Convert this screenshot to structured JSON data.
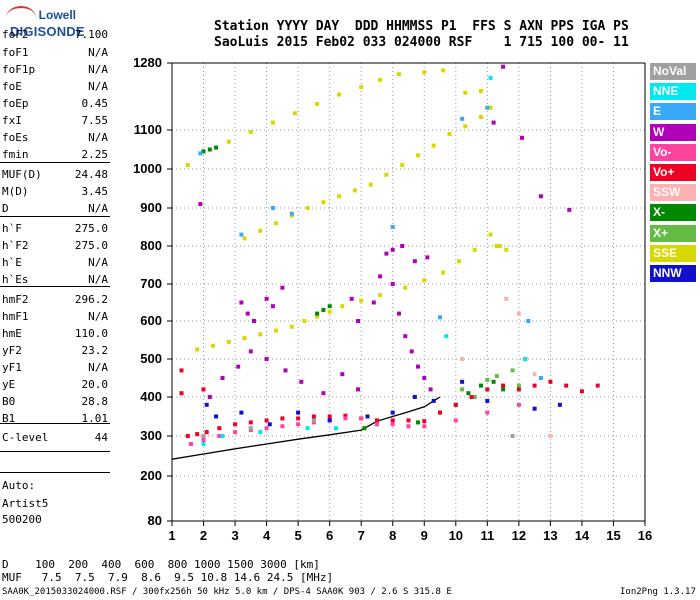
{
  "logo": {
    "line1": "Lowell",
    "line2": "DIGISONDE"
  },
  "header": {
    "line1": "Station YYYY DAY  DDD HHMMSS P1  FFS S AXN PPS IGA PS",
    "line2": "SaoLuis 2015 Feb02 033 024000 RSF    1 715 100 00- 11"
  },
  "params": [
    {
      "name": "foF2",
      "value": "7.100"
    },
    {
      "name": "foF1",
      "value": "N/A"
    },
    {
      "name": "foF1p",
      "value": "N/A"
    },
    {
      "name": "foE",
      "value": "N/A"
    },
    {
      "name": "foEp",
      "value": "0.45"
    },
    {
      "name": "fxI",
      "value": "7.55"
    },
    {
      "name": "foEs",
      "value": "N/A"
    },
    {
      "name": "fmin",
      "value": "2.25"
    },
    {
      "name": "MUF(D)",
      "value": "24.48"
    },
    {
      "name": "M(D)",
      "value": "3.45"
    },
    {
      "name": "D",
      "value": "N/A"
    },
    {
      "name": "h`F",
      "value": "275.0"
    },
    {
      "name": "h`F2",
      "value": "275.0"
    },
    {
      "name": "h`E",
      "value": "N/A"
    },
    {
      "name": "h`Es",
      "value": "N/A"
    },
    {
      "name": "hmF2",
      "value": "296.2"
    },
    {
      "name": "hmF1",
      "value": "N/A"
    },
    {
      "name": "hmE",
      "value": "110.0"
    },
    {
      "name": "yF2",
      "value": "23.2"
    },
    {
      "name": "yF1",
      "value": "N/A"
    },
    {
      "name": "yE",
      "value": "20.0"
    },
    {
      "name": "B0",
      "value": "28.8"
    },
    {
      "name": "B1",
      "value": "1.01"
    },
    {
      "name": "C-level",
      "value": "44"
    }
  ],
  "autoscaling": {
    "line1": "Auto:",
    "line2": "Artist5",
    "line3": "500200"
  },
  "bottom_table": {
    "d_row": "D    100  200  400  600  800 1000 1500 3000 [km]",
    "muf_row": "MUF   7.5  7.5  7.9  8.6  9.5 10.8 14.6 24.5 [MHz]"
  },
  "footer": {
    "left": "SAA0K_2015033024000.RSF / 300fx256h 50 kHz 5.0 km / DPS-4 SAA0K 903 / 2.6 S 315.8 E",
    "right": "Ion2Png 1.3.17"
  },
  "legend": [
    {
      "label": "NoVal",
      "color": "#a0a0a0"
    },
    {
      "label": "NNE",
      "color": "#00e8f0"
    },
    {
      "label": "E",
      "color": "#38a8f8"
    },
    {
      "label": "W",
      "color": "#b000b8"
    },
    {
      "label": "Vo-",
      "color": "#ff44a0"
    },
    {
      "label": "Vo+",
      "color": "#ee0022"
    },
    {
      "label": "SSW",
      "color": "#ffb0b0"
    },
    {
      "label": "X-",
      "color": "#008800"
    },
    {
      "label": "X+",
      "color": "#66bb44"
    },
    {
      "label": "SSE",
      "color": "#d8d800"
    },
    {
      "label": "NNW",
      "color": "#1010cc"
    }
  ],
  "chart_data": {
    "type": "scatter",
    "xlabel": "",
    "ylabel": "",
    "x_ticks": [
      1,
      2,
      3,
      4,
      5,
      6,
      7,
      8,
      9,
      10,
      11,
      12,
      13,
      14,
      15,
      16
    ],
    "y_ticks": [
      80,
      200,
      300,
      400,
      500,
      600,
      700,
      800,
      900,
      1000,
      1100,
      1280
    ],
    "xlim": [
      1,
      16
    ],
    "ylim": [
      80,
      1280
    ],
    "grid": true,
    "legend_position": "right",
    "series": [
      {
        "name": "SSE",
        "color": "#d8d800",
        "points": [
          [
            1.8,
            525
          ],
          [
            2.3,
            535
          ],
          [
            2.8,
            545
          ],
          [
            3.3,
            555
          ],
          [
            3.8,
            565
          ],
          [
            4.3,
            575
          ],
          [
            4.8,
            585
          ],
          [
            5.2,
            600
          ],
          [
            5.6,
            612
          ],
          [
            6.0,
            625
          ],
          [
            6.4,
            640
          ],
          [
            7.0,
            655
          ],
          [
            7.6,
            670
          ],
          [
            8.4,
            690
          ],
          [
            9.0,
            710
          ],
          [
            9.6,
            730
          ],
          [
            10.1,
            760
          ],
          [
            10.6,
            790
          ],
          [
            11.1,
            830
          ],
          [
            11.3,
            800
          ],
          [
            3.3,
            820
          ],
          [
            3.8,
            840
          ],
          [
            4.3,
            860
          ],
          [
            4.8,
            880
          ],
          [
            5.3,
            900
          ],
          [
            5.8,
            915
          ],
          [
            6.3,
            930
          ],
          [
            6.8,
            945
          ],
          [
            7.3,
            960
          ],
          [
            7.8,
            985
          ],
          [
            8.3,
            1010
          ],
          [
            8.8,
            1035
          ],
          [
            9.3,
            1060
          ],
          [
            9.8,
            1090
          ],
          [
            10.3,
            1110
          ],
          [
            10.8,
            1135
          ],
          [
            11.1,
            1160
          ],
          [
            2.8,
            1070
          ],
          [
            3.5,
            1095
          ],
          [
            4.2,
            1120
          ],
          [
            4.9,
            1145
          ],
          [
            5.6,
            1170
          ],
          [
            6.3,
            1195
          ],
          [
            7.0,
            1215
          ],
          [
            7.6,
            1235
          ],
          [
            8.2,
            1250
          ],
          [
            9.0,
            1255
          ],
          [
            9.6,
            1260
          ],
          [
            10.3,
            1200
          ],
          [
            10.8,
            1205
          ],
          [
            11.1,
            1240
          ],
          [
            1.5,
            1010
          ],
          [
            11.4,
            800
          ],
          [
            11.6,
            790
          ]
        ]
      },
      {
        "name": "X-",
        "color": "#008800",
        "points": [
          [
            2.0,
            1045
          ],
          [
            2.2,
            1050
          ],
          [
            2.4,
            1055
          ],
          [
            5.6,
            620
          ],
          [
            5.8,
            630
          ],
          [
            6.0,
            640
          ],
          [
            9.5,
            360
          ],
          [
            10.0,
            380
          ],
          [
            10.4,
            410
          ],
          [
            10.8,
            430
          ],
          [
            11.2,
            440
          ],
          [
            11.5,
            420
          ],
          [
            7.1,
            320
          ],
          [
            8.8,
            335
          ]
        ]
      },
      {
        "name": "X+",
        "color": "#66bb44",
        "points": [
          [
            10.2,
            420
          ],
          [
            10.6,
            400
          ],
          [
            11.0,
            445
          ],
          [
            11.3,
            455
          ],
          [
            11.8,
            470
          ],
          [
            12.0,
            430
          ]
        ]
      },
      {
        "name": "Vo+",
        "color": "#ee0022",
        "points": [
          [
            1.5,
            300
          ],
          [
            1.8,
            305
          ],
          [
            2.1,
            310
          ],
          [
            2.5,
            320
          ],
          [
            3.0,
            330
          ],
          [
            3.5,
            335
          ],
          [
            4.0,
            340
          ],
          [
            4.5,
            345
          ],
          [
            5.0,
            345
          ],
          [
            5.5,
            350
          ],
          [
            6.0,
            350
          ],
          [
            6.5,
            352
          ],
          [
            7.0,
            345
          ],
          [
            7.5,
            340
          ],
          [
            8.0,
            340
          ],
          [
            8.5,
            340
          ],
          [
            9.0,
            338
          ],
          [
            9.5,
            360
          ],
          [
            10.0,
            380
          ],
          [
            10.5,
            400
          ],
          [
            11.0,
            420
          ],
          [
            11.5,
            430
          ],
          [
            12.0,
            420
          ],
          [
            12.5,
            430
          ],
          [
            13.0,
            440
          ],
          [
            13.5,
            430
          ],
          [
            14.0,
            415
          ],
          [
            1.3,
            470
          ],
          [
            1.3,
            410
          ],
          [
            2.0,
            420
          ],
          [
            12.2,
            500
          ],
          [
            14.5,
            430
          ]
        ]
      },
      {
        "name": "Vo-",
        "color": "#ff44a0",
        "points": [
          [
            1.6,
            280
          ],
          [
            2.0,
            290
          ],
          [
            2.5,
            300
          ],
          [
            3.0,
            310
          ],
          [
            3.5,
            315
          ],
          [
            4.0,
            320
          ],
          [
            4.5,
            325
          ],
          [
            5.0,
            330
          ],
          [
            5.5,
            335
          ],
          [
            6.0,
            340
          ],
          [
            6.5,
            345
          ],
          [
            7.0,
            345
          ],
          [
            7.5,
            330
          ],
          [
            8.0,
            330
          ],
          [
            8.5,
            325
          ],
          [
            9.0,
            325
          ],
          [
            10.0,
            340
          ],
          [
            11.0,
            360
          ],
          [
            12.0,
            380
          ]
        ]
      },
      {
        "name": "W",
        "color": "#b000b8",
        "points": [
          [
            2.2,
            400
          ],
          [
            2.6,
            450
          ],
          [
            3.1,
            480
          ],
          [
            3.5,
            520
          ],
          [
            4.0,
            500
          ],
          [
            4.6,
            470
          ],
          [
            5.1,
            440
          ],
          [
            5.8,
            410
          ],
          [
            6.4,
            460
          ],
          [
            6.9,
            420
          ],
          [
            7.4,
            650
          ],
          [
            7.6,
            720
          ],
          [
            7.8,
            780
          ],
          [
            8.0,
            700
          ],
          [
            8.2,
            620
          ],
          [
            8.4,
            560
          ],
          [
            8.6,
            520
          ],
          [
            8.8,
            480
          ],
          [
            9.0,
            450
          ],
          [
            9.2,
            420
          ],
          [
            3.2,
            650
          ],
          [
            3.4,
            620
          ],
          [
            3.6,
            600
          ],
          [
            4.0,
            660
          ],
          [
            4.2,
            640
          ],
          [
            4.5,
            690
          ],
          [
            6.7,
            660
          ],
          [
            6.9,
            600
          ],
          [
            8.0,
            790
          ],
          [
            8.3,
            800
          ],
          [
            8.7,
            760
          ],
          [
            9.1,
            770
          ],
          [
            11.5,
            1270
          ],
          [
            11.2,
            1120
          ],
          [
            12.1,
            1080
          ],
          [
            12.7,
            930
          ],
          [
            13.6,
            895
          ],
          [
            1.9,
            910
          ]
        ]
      },
      {
        "name": "NNW",
        "color": "#1010cc",
        "points": [
          [
            2.1,
            380
          ],
          [
            2.4,
            350
          ],
          [
            3.2,
            360
          ],
          [
            4.1,
            330
          ],
          [
            5.0,
            360
          ],
          [
            6.0,
            340
          ],
          [
            7.2,
            350
          ],
          [
            8.0,
            360
          ],
          [
            8.7,
            400
          ],
          [
            9.3,
            390
          ],
          [
            10.2,
            440
          ],
          [
            11.0,
            390
          ],
          [
            12.5,
            370
          ],
          [
            13.3,
            380
          ]
        ]
      },
      {
        "name": "E",
        "color": "#38a8f8",
        "points": [
          [
            1.9,
            1040
          ],
          [
            3.2,
            830
          ],
          [
            4.2,
            900
          ],
          [
            4.8,
            885
          ],
          [
            11.0,
            1160
          ],
          [
            10.2,
            1130
          ],
          [
            8.0,
            850
          ],
          [
            9.5,
            610
          ],
          [
            12.3,
            600
          ],
          [
            12.7,
            450
          ]
        ]
      },
      {
        "name": "NNE",
        "color": "#00e8f0",
        "points": [
          [
            2.0,
            280
          ],
          [
            2.6,
            300
          ],
          [
            3.8,
            310
          ],
          [
            5.3,
            320
          ],
          [
            6.2,
            320
          ],
          [
            9.7,
            560
          ],
          [
            11.1,
            1240
          ],
          [
            12.2,
            500
          ]
        ]
      },
      {
        "name": "SSW",
        "color": "#ffb0b0",
        "points": [
          [
            11.6,
            660
          ],
          [
            12.0,
            620
          ],
          [
            13.0,
            300
          ],
          [
            12.5,
            460
          ],
          [
            10.2,
            500
          ]
        ]
      },
      {
        "name": "NoVal",
        "color": "#a0a0a0",
        "points": [
          [
            2.0,
            300
          ],
          [
            3.5,
            320
          ],
          [
            5.5,
            340
          ],
          [
            11.8,
            300
          ]
        ]
      }
    ],
    "profile_curve": [
      [
        1.0,
        242
      ],
      [
        2.0,
        255
      ],
      [
        3.0,
        268
      ],
      [
        4.0,
        280
      ],
      [
        5.0,
        292
      ],
      [
        6.0,
        303
      ],
      [
        7.0,
        315
      ],
      [
        7.5,
        338
      ],
      [
        8.0,
        350
      ],
      [
        8.5,
        362
      ],
      [
        9.0,
        375
      ],
      [
        9.3,
        390
      ],
      [
        9.5,
        400
      ]
    ]
  }
}
